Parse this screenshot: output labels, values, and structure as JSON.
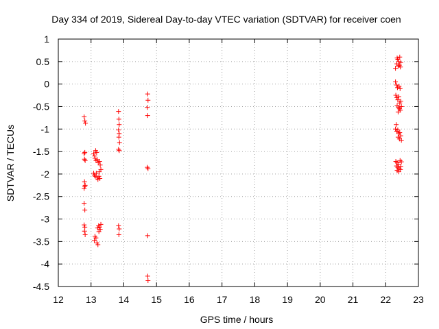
{
  "chart_data": {
    "type": "scatter",
    "title": "Day 334 of 2019, Sidereal Day-to-day VTEC variation (SDTVAR) for receiver coen",
    "xlabel": "GPS time / hours",
    "ylabel": "SDTVAR / TECUs",
    "xlim": [
      12,
      23
    ],
    "ylim": [
      -4.5,
      1
    ],
    "xticks": [
      12,
      13,
      14,
      15,
      16,
      17,
      18,
      19,
      20,
      21,
      22,
      23
    ],
    "yticks": [
      1,
      0.5,
      0,
      -0.5,
      -1,
      -1.5,
      -2,
      -2.5,
      -3,
      -3.5,
      -4,
      -4.5
    ],
    "xtick_labels": [
      "12",
      "13",
      "14",
      "15",
      "16",
      "17",
      "18",
      "19",
      "20",
      "21",
      "22",
      "23"
    ],
    "ytick_labels": [
      "1",
      "0.5",
      "0",
      "-0.5",
      "-1",
      "-1.5",
      "-2",
      "-2.5",
      "-3",
      "-3.5",
      "-4",
      "-4.5"
    ],
    "grid": true,
    "marker": "+",
    "color": "#ff0000",
    "series": [
      {
        "name": "SDTVAR",
        "points": [
          [
            12.79,
            -0.73
          ],
          [
            12.81,
            -0.82
          ],
          [
            12.83,
            -0.87
          ],
          [
            12.79,
            -1.55
          ],
          [
            12.81,
            -1.52
          ],
          [
            12.8,
            -1.67
          ],
          [
            12.82,
            -1.7
          ],
          [
            12.8,
            -2.17
          ],
          [
            12.82,
            -2.25
          ],
          [
            12.79,
            -2.32
          ],
          [
            12.81,
            -2.28
          ],
          [
            12.79,
            -2.65
          ],
          [
            12.81,
            -2.8
          ],
          [
            12.79,
            -3.13
          ],
          [
            12.81,
            -3.18
          ],
          [
            12.8,
            -3.27
          ],
          [
            12.82,
            -3.35
          ],
          [
            13.08,
            -1.55
          ],
          [
            13.11,
            -1.6
          ],
          [
            13.14,
            -1.48
          ],
          [
            13.17,
            -1.52
          ],
          [
            13.12,
            -1.65
          ],
          [
            13.15,
            -1.7
          ],
          [
            13.19,
            -1.68
          ],
          [
            13.22,
            -1.75
          ],
          [
            13.26,
            -1.72
          ],
          [
            13.28,
            -1.8
          ],
          [
            13.08,
            -1.98
          ],
          [
            13.1,
            -2.02
          ],
          [
            13.13,
            -2.05
          ],
          [
            13.16,
            -1.98
          ],
          [
            13.18,
            -2.08
          ],
          [
            13.21,
            -2.12
          ],
          [
            13.24,
            -2.05
          ],
          [
            13.27,
            -2.1
          ],
          [
            13.3,
            -1.9
          ],
          [
            13.25,
            -1.95
          ],
          [
            13.12,
            -3.38
          ],
          [
            13.15,
            -3.42
          ],
          [
            13.1,
            -3.48
          ],
          [
            13.18,
            -3.53
          ],
          [
            13.21,
            -3.57
          ],
          [
            13.2,
            -3.2
          ],
          [
            13.23,
            -3.15
          ],
          [
            13.26,
            -3.18
          ],
          [
            13.28,
            -3.23
          ],
          [
            13.24,
            -3.28
          ],
          [
            13.3,
            -3.12
          ],
          [
            13.84,
            -0.61
          ],
          [
            13.85,
            -0.78
          ],
          [
            13.86,
            -0.9
          ],
          [
            13.84,
            -1.02
          ],
          [
            13.86,
            -1.1
          ],
          [
            13.85,
            -1.18
          ],
          [
            13.87,
            -1.3
          ],
          [
            13.84,
            -1.45
          ],
          [
            13.86,
            -1.48
          ],
          [
            13.84,
            -3.15
          ],
          [
            13.86,
            -3.22
          ],
          [
            13.85,
            -3.35
          ],
          [
            14.73,
            -0.22
          ],
          [
            14.74,
            -0.36
          ],
          [
            14.72,
            -0.52
          ],
          [
            14.73,
            -0.7
          ],
          [
            14.72,
            -1.85
          ],
          [
            14.74,
            -1.88
          ],
          [
            14.73,
            -3.37
          ],
          [
            14.73,
            -4.27
          ],
          [
            14.74,
            -4.37
          ],
          [
            22.3,
            0.35
          ],
          [
            22.34,
            0.45
          ],
          [
            22.37,
            0.55
          ],
          [
            22.4,
            0.5
          ],
          [
            22.43,
            0.6
          ],
          [
            22.46,
            0.48
          ],
          [
            22.38,
            0.4
          ],
          [
            22.45,
            0.38
          ],
          [
            22.35,
            0.58
          ],
          [
            22.42,
            0.42
          ],
          [
            22.3,
            0.05
          ],
          [
            22.33,
            -0.02
          ],
          [
            22.36,
            -0.08
          ],
          [
            22.41,
            -0.05
          ],
          [
            22.44,
            -0.1
          ],
          [
            22.31,
            -0.25
          ],
          [
            22.34,
            -0.3
          ],
          [
            22.37,
            -0.35
          ],
          [
            22.4,
            -0.28
          ],
          [
            22.43,
            -0.42
          ],
          [
            22.46,
            -0.38
          ],
          [
            22.35,
            -0.48
          ],
          [
            22.39,
            -0.52
          ],
          [
            22.42,
            -0.55
          ],
          [
            22.45,
            -0.58
          ],
          [
            22.48,
            -0.5
          ],
          [
            22.38,
            -0.62
          ],
          [
            22.32,
            -0.9
          ],
          [
            22.3,
            -1.0
          ],
          [
            22.34,
            -1.05
          ],
          [
            22.37,
            -1.02
          ],
          [
            22.4,
            -1.1
          ],
          [
            22.43,
            -1.08
          ],
          [
            22.46,
            -1.15
          ],
          [
            22.38,
            -1.18
          ],
          [
            22.42,
            -1.22
          ],
          [
            22.48,
            -1.25
          ],
          [
            22.31,
            -1.72
          ],
          [
            22.35,
            -1.75
          ],
          [
            22.39,
            -1.78
          ],
          [
            22.44,
            -1.7
          ],
          [
            22.48,
            -1.73
          ],
          [
            22.33,
            -1.82
          ],
          [
            22.37,
            -1.85
          ],
          [
            22.41,
            -1.88
          ],
          [
            22.46,
            -1.83
          ],
          [
            22.35,
            -1.92
          ],
          [
            22.4,
            -1.95
          ],
          [
            22.45,
            -1.9
          ]
        ]
      }
    ]
  }
}
